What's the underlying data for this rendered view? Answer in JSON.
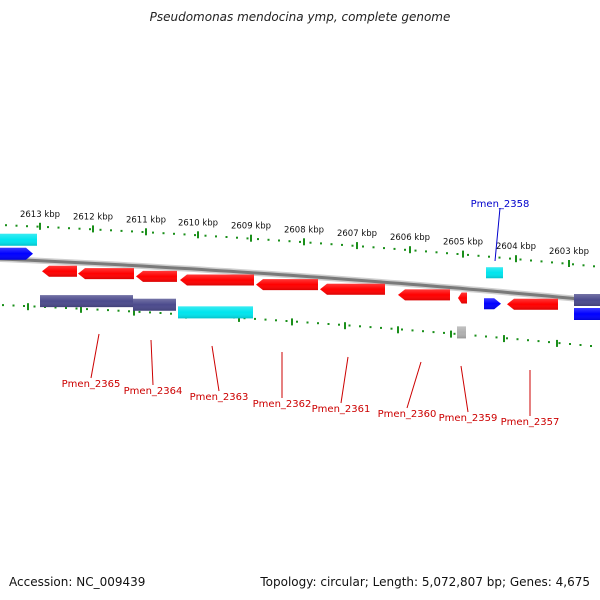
{
  "title": "Pseudomonas mendocina ymp, complete genome",
  "footer": {
    "accession": "Accession: NC_009439",
    "topology": "Topology: circular; Length: 5,072,807 bp; Genes: 4,675"
  },
  "ticks": [
    "2613 kbp",
    "2612 kbp",
    "2611 kbp",
    "2610 kbp",
    "2609 kbp",
    "2608 kbp",
    "2607 kbp",
    "2606 kbp",
    "2605 kbp",
    "2604 kbp",
    "2603 kbp"
  ],
  "genes": [
    {
      "label": "Pmen_2365",
      "color": "#cc0000"
    },
    {
      "label": "Pmen_2364",
      "color": "#cc0000"
    },
    {
      "label": "Pmen_2363",
      "color": "#cc0000"
    },
    {
      "label": "Pmen_2362",
      "color": "#cc0000"
    },
    {
      "label": "Pmen_2361",
      "color": "#cc0000"
    },
    {
      "label": "Pmen_2360",
      "color": "#cc0000"
    },
    {
      "label": "Pmen_2359",
      "color": "#cc0000"
    },
    {
      "label": "Pmen_2357",
      "color": "#cc0000"
    },
    {
      "label": "Pmen_2358",
      "color": "#0000cc"
    }
  ],
  "colors": {
    "forward_red": "#ff0000",
    "cyan": "#00e5ee",
    "slate": "#4b4a8c",
    "blue": "#0000ff",
    "grey": "#b0b0b0",
    "tick_green": "#1a8f1a",
    "backbone": "#7a7a7a"
  }
}
